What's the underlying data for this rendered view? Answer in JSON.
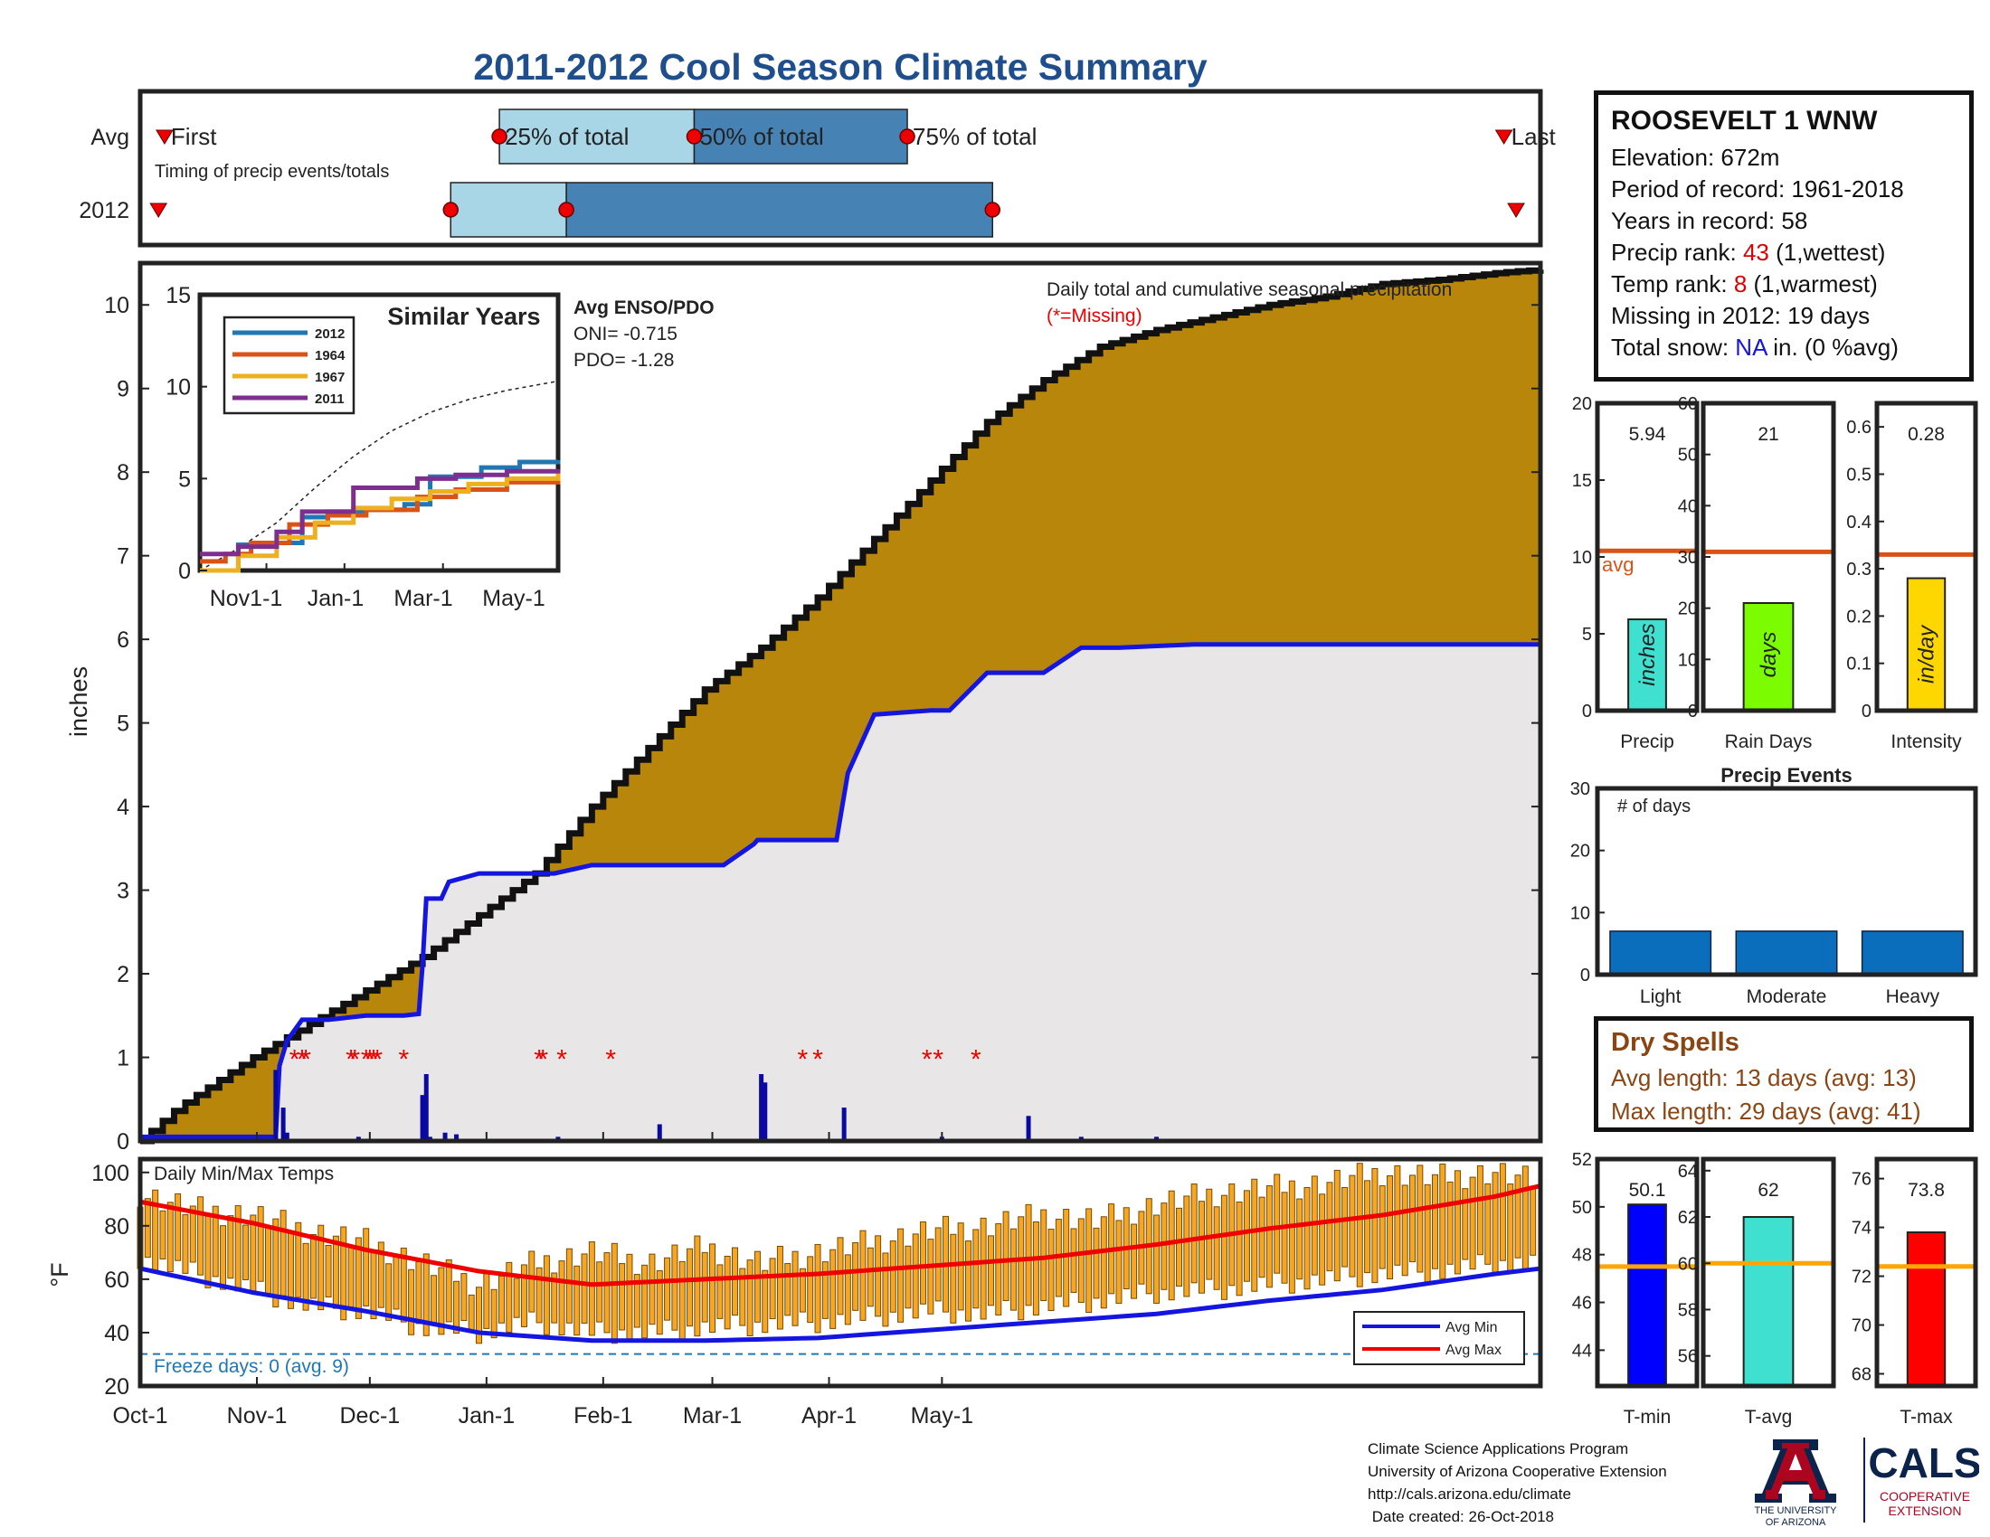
{
  "page_title": "2011-2012 Cool Season Climate Summary",
  "station": {
    "name": "ROOSEVELT 1 WNW",
    "elevation_label": "Elevation: 672m",
    "period_label": "Period of record: 1961-2018",
    "years_label": "Years in record: 58",
    "precip_rank_prefix": "Precip rank: ",
    "precip_rank_value": "43",
    "precip_rank_suffix": " (1,wettest)",
    "temp_rank_prefix": "Temp rank: ",
    "temp_rank_value": "8",
    "temp_rank_suffix": " (1,warmest)",
    "missing_label": "Missing in 2012: 19 days",
    "snow_prefix": "Total snow: ",
    "snow_value": "NA",
    "snow_suffix": " in. (0 %avg)"
  },
  "dry_spells": {
    "title": "Dry Spells",
    "avg_line": "Avg length: 13 days (avg: 13)",
    "max_line": "Max length: 29 days (avg: 41)"
  },
  "footer": {
    "lines": [
      "Climate Science Applications Program",
      "University of Arizona Cooperative Extension",
      "http://cals.arizona.edu/climate",
      " Date created: 26-Oct-2018"
    ]
  },
  "logos": {
    "ua_line1": "THE UNIVERSITY",
    "ua_line2": "OF ARIZONA",
    "cals": "CALS",
    "cals_sub1": "COOPERATIVE",
    "cals_sub2": "EXTENSION"
  },
  "colors": {
    "title_blue": "#1f4e8c",
    "avg_fill": "#b8860b",
    "obs_fill": "#e8e6e6",
    "obs_line": "#1515e0",
    "rank_red": "#e00000",
    "snow_blue": "#1515e0",
    "dry_brown": "#8b4513",
    "box_light": "#a8d6e6",
    "box_dark": "#4682b4"
  },
  "chart_data": [
    {
      "id": "timing",
      "type": "box",
      "title": "Timing of precip events/totals",
      "rows": [
        {
          "label": "Avg",
          "first": "Oct-5",
          "p25": "Nov-29",
          "p50": "Dec-31",
          "p75": "Feb-4",
          "last": "May-12"
        },
        {
          "label": "2012",
          "first": "Oct-4",
          "p25": "Nov-21",
          "p50": "Dec-10",
          "p75": "Feb-18",
          "last": "May-14"
        }
      ],
      "marker_labels": {
        "first": "First",
        "p25": "25% of total",
        "p50": "50% of total",
        "p75": "75% of total",
        "last": "Last"
      }
    },
    {
      "id": "precip_main",
      "type": "area",
      "title": "Daily total and cumulative seasonal precipitation",
      "missing_note": "(*=Missing)",
      "ylabel": "inches",
      "ylim": [
        0,
        10.5
      ],
      "yticks": [
        0,
        1,
        2,
        3,
        4,
        5,
        6,
        7,
        8,
        9,
        10
      ],
      "x_dates": [
        "Oct-1",
        "Nov-1",
        "Dec-1",
        "Jan-1",
        "Feb-1",
        "Mar-1",
        "Apr-1",
        "May-1"
      ],
      "avg_cumulative": {
        "name": "Average",
        "day": [
          0,
          10,
          30,
          45,
          60,
          75,
          90,
          105,
          120,
          135,
          150,
          165,
          180,
          195,
          210,
          225,
          240,
          255,
          270,
          285,
          300,
          315,
          330,
          345,
          360,
          365,
          372
        ],
        "value": [
          0,
          0.4,
          1.0,
          1.4,
          1.8,
          2.2,
          2.7,
          3.2,
          4.0,
          4.7,
          5.4,
          5.9,
          6.5,
          7.2,
          7.9,
          8.6,
          9.1,
          9.5,
          9.7,
          9.85,
          10.0,
          10.1,
          10.25,
          10.3,
          10.38,
          10.4,
          10.42
        ]
      },
      "observed_cumulative": {
        "name": "2012",
        "day": [
          0,
          36,
          37,
          39,
          43,
          50,
          60,
          70,
          74,
          75,
          76,
          80,
          82,
          90,
          110,
          120,
          140,
          155,
          163,
          164,
          170,
          185,
          188,
          195,
          210,
          215,
          225,
          240,
          250,
          260,
          280,
          372
        ],
        "value": [
          0.05,
          0.05,
          0.9,
          1.2,
          1.45,
          1.45,
          1.5,
          1.5,
          1.52,
          2.1,
          2.9,
          2.9,
          3.1,
          3.2,
          3.2,
          3.3,
          3.3,
          3.3,
          3.55,
          3.6,
          3.6,
          3.6,
          4.4,
          5.1,
          5.15,
          5.15,
          5.6,
          5.6,
          5.9,
          5.9,
          5.94,
          5.94
        ]
      },
      "daily_bars": [
        {
          "day": 36,
          "value": 0.85
        },
        {
          "day": 38,
          "value": 0.4
        },
        {
          "day": 39,
          "value": 0.1
        },
        {
          "day": 58,
          "value": 0.05
        },
        {
          "day": 75,
          "value": 0.55
        },
        {
          "day": 76,
          "value": 0.8
        },
        {
          "day": 77,
          "value": 0.05
        },
        {
          "day": 81,
          "value": 0.1
        },
        {
          "day": 84,
          "value": 0.08
        },
        {
          "day": 111,
          "value": 0.05
        },
        {
          "day": 138,
          "value": 0.2
        },
        {
          "day": 165,
          "value": 0.8
        },
        {
          "day": 166,
          "value": 0.7
        },
        {
          "day": 187,
          "value": 0.4
        },
        {
          "day": 213,
          "value": 0.05
        },
        {
          "day": 236,
          "value": 0.3
        },
        {
          "day": 250,
          "value": 0.05
        },
        {
          "day": 270,
          "value": 0.05
        }
      ],
      "missing_days": [
        41,
        43,
        44,
        56,
        57,
        60,
        61,
        62,
        63,
        70,
        106,
        107,
        112,
        125,
        176,
        180,
        209,
        212,
        222
      ]
    },
    {
      "id": "similar_years",
      "type": "line",
      "title": "Similar Years",
      "ylim": [
        0,
        15
      ],
      "yticks": [
        0,
        5,
        10,
        15
      ],
      "xticks": [
        "Nov1-1",
        "Jan-1",
        "Mar-1",
        "May-1"
      ],
      "enso_title": "Avg ENSO/PDO",
      "oni_label": "ONI= -0.715",
      "pdo_label": "PDO= -1.28",
      "series": [
        {
          "name": "2012",
          "color": "#1f77b4",
          "points": [
            [
              0,
              0
            ],
            [
              20,
              0
            ],
            [
              30,
              1.4
            ],
            [
              60,
              1.5
            ],
            [
              80,
              2.9
            ],
            [
              100,
              3.2
            ],
            [
              130,
              3.3
            ],
            [
              160,
              3.6
            ],
            [
              180,
              5.1
            ],
            [
              220,
              5.6
            ],
            [
              250,
              5.9
            ],
            [
              280,
              6.0
            ]
          ]
        },
        {
          "name": "1964",
          "color": "#d95319",
          "points": [
            [
              0,
              0.5
            ],
            [
              20,
              0.9
            ],
            [
              40,
              1.5
            ],
            [
              70,
              2.5
            ],
            [
              100,
              3.0
            ],
            [
              130,
              3.3
            ],
            [
              170,
              4.0
            ],
            [
              200,
              4.4
            ],
            [
              240,
              4.8
            ],
            [
              280,
              5.1
            ]
          ]
        },
        {
          "name": "1967",
          "color": "#edb120",
          "points": [
            [
              0,
              0
            ],
            [
              30,
              0.8
            ],
            [
              60,
              1.8
            ],
            [
              90,
              2.6
            ],
            [
              120,
              3.4
            ],
            [
              150,
              3.9
            ],
            [
              180,
              4.3
            ],
            [
              210,
              4.7
            ],
            [
              240,
              5.0
            ],
            [
              280,
              5.3
            ]
          ]
        },
        {
          "name": "2011",
          "color": "#7e2f8e",
          "points": [
            [
              0,
              0.9
            ],
            [
              30,
              1.3
            ],
            [
              60,
              2.1
            ],
            [
              80,
              3.2
            ],
            [
              110,
              3.2
            ],
            [
              120,
              4.5
            ],
            [
              150,
              4.5
            ],
            [
              170,
              5.0
            ],
            [
              200,
              5.2
            ],
            [
              240,
              5.4
            ],
            [
              280,
              5.5
            ]
          ]
        }
      ],
      "avg_series": {
        "name": "avg",
        "points": [
          [
            0,
            0
          ],
          [
            30,
            1.2
          ],
          [
            60,
            2.6
          ],
          [
            90,
            4.5
          ],
          [
            120,
            6.2
          ],
          [
            150,
            7.6
          ],
          [
            180,
            8.6
          ],
          [
            210,
            9.3
          ],
          [
            240,
            9.8
          ],
          [
            280,
            10.3
          ]
        ]
      }
    },
    {
      "id": "bar_precip",
      "type": "bar",
      "category": "Precip",
      "unit_label": "inches",
      "value": 5.94,
      "value_label": "5.94",
      "avg": 10.4,
      "avg_label": "avg",
      "ylim": [
        0,
        20
      ],
      "yticks": [
        0,
        5,
        10,
        15,
        20
      ],
      "color": "#40e0d0"
    },
    {
      "id": "bar_raindays",
      "type": "bar",
      "category": "Rain Days",
      "unit_label": "days",
      "value": 21,
      "value_label": "21",
      "avg": 31,
      "ylim": [
        0,
        60
      ],
      "yticks": [
        0,
        10,
        20,
        30,
        40,
        50,
        60
      ],
      "color": "#7cfc00"
    },
    {
      "id": "bar_intensity",
      "type": "bar",
      "category": "Intensity",
      "unit_label": "in/day",
      "value": 0.28,
      "value_label": "0.28",
      "avg": 0.33,
      "ylim": [
        0,
        0.65
      ],
      "yticks": [
        0,
        0.1,
        0.2,
        0.3,
        0.4,
        0.5,
        0.6
      ],
      "ytick_labels": [
        "0",
        "0.1",
        "0.2",
        "0.3",
        "0.4",
        "0.5",
        "0.6"
      ],
      "color": "#ffd700"
    },
    {
      "id": "precip_events",
      "type": "bar",
      "title": "Precip Events",
      "ylabel_inside": "# of days",
      "categories": [
        "Light",
        "Moderate",
        "Heavy"
      ],
      "values": [
        7,
        7,
        7
      ],
      "ylim": [
        0,
        30
      ],
      "yticks": [
        0,
        10,
        20,
        30
      ],
      "color": "#0a6ebd"
    },
    {
      "id": "temps",
      "type": "bar",
      "title": "Daily Min/Max Temps",
      "ylabel": "°F",
      "ylim": [
        20,
        105
      ],
      "yticks": [
        20,
        40,
        60,
        80,
        100
      ],
      "x_dates": [
        "Oct-1",
        "Nov-1",
        "Dec-1",
        "Jan-1",
        "Feb-1",
        "Mar-1",
        "Apr-1",
        "May-1"
      ],
      "freeze_label": "Freeze days: 0 (avg. 9)",
      "freeze_line": 32,
      "legend": [
        "Avg Min",
        "Avg Max"
      ],
      "avg_min": {
        "day": [
          0,
          30,
          60,
          90,
          120,
          150,
          180,
          210,
          240,
          270,
          300,
          330,
          360,
          372
        ],
        "value": [
          64,
          55,
          48,
          40,
          37,
          37,
          38,
          41,
          44,
          47,
          52,
          56,
          62,
          64
        ]
      },
      "avg_max": {
        "day": [
          0,
          30,
          60,
          90,
          120,
          150,
          180,
          210,
          240,
          270,
          300,
          330,
          360,
          372
        ],
        "value": [
          89,
          81,
          71,
          63,
          58,
          60,
          62,
          65,
          68,
          73,
          79,
          84,
          91,
          95
        ]
      },
      "daily_range": {
        "day": [
          0,
          15,
          30,
          45,
          60,
          75,
          90,
          105,
          120,
          135,
          150,
          165,
          180,
          195,
          210,
          225,
          240,
          255,
          270,
          285,
          300,
          315,
          330,
          345,
          360,
          372
        ],
        "min": [
          68,
          62,
          56,
          50,
          48,
          42,
          40,
          44,
          40,
          40,
          42,
          43,
          44,
          46,
          48,
          47,
          50,
          52,
          55,
          56,
          58,
          60,
          62,
          63,
          66,
          66
        ],
        "max": [
          92,
          86,
          84,
          78,
          74,
          66,
          58,
          66,
          70,
          66,
          72,
          66,
          70,
          74,
          78,
          80,
          84,
          82,
          88,
          92,
          94,
          96,
          100,
          98,
          100,
          96
        ]
      }
    },
    {
      "id": "temp_bar_min",
      "type": "bar",
      "category": "T-min",
      "value": 50.1,
      "value_label": "50.1",
      "avg": 47.5,
      "ylim": [
        42.5,
        52
      ],
      "yticks": [
        44,
        46,
        48,
        50,
        52
      ],
      "color": "#0000ff"
    },
    {
      "id": "temp_bar_avg",
      "type": "bar",
      "category": "T-avg",
      "value": 62,
      "value_label": "62",
      "avg": 60,
      "ylim": [
        54.7,
        64.5
      ],
      "yticks": [
        56,
        58,
        60,
        62,
        64
      ],
      "color": "#40e0d0"
    },
    {
      "id": "temp_bar_max",
      "type": "bar",
      "category": "T-max",
      "value": 73.8,
      "value_label": "73.8",
      "avg": 72.4,
      "ylim": [
        67.5,
        76.8
      ],
      "yticks": [
        68,
        70,
        72,
        74,
        76
      ],
      "color": "#ff0000"
    }
  ]
}
